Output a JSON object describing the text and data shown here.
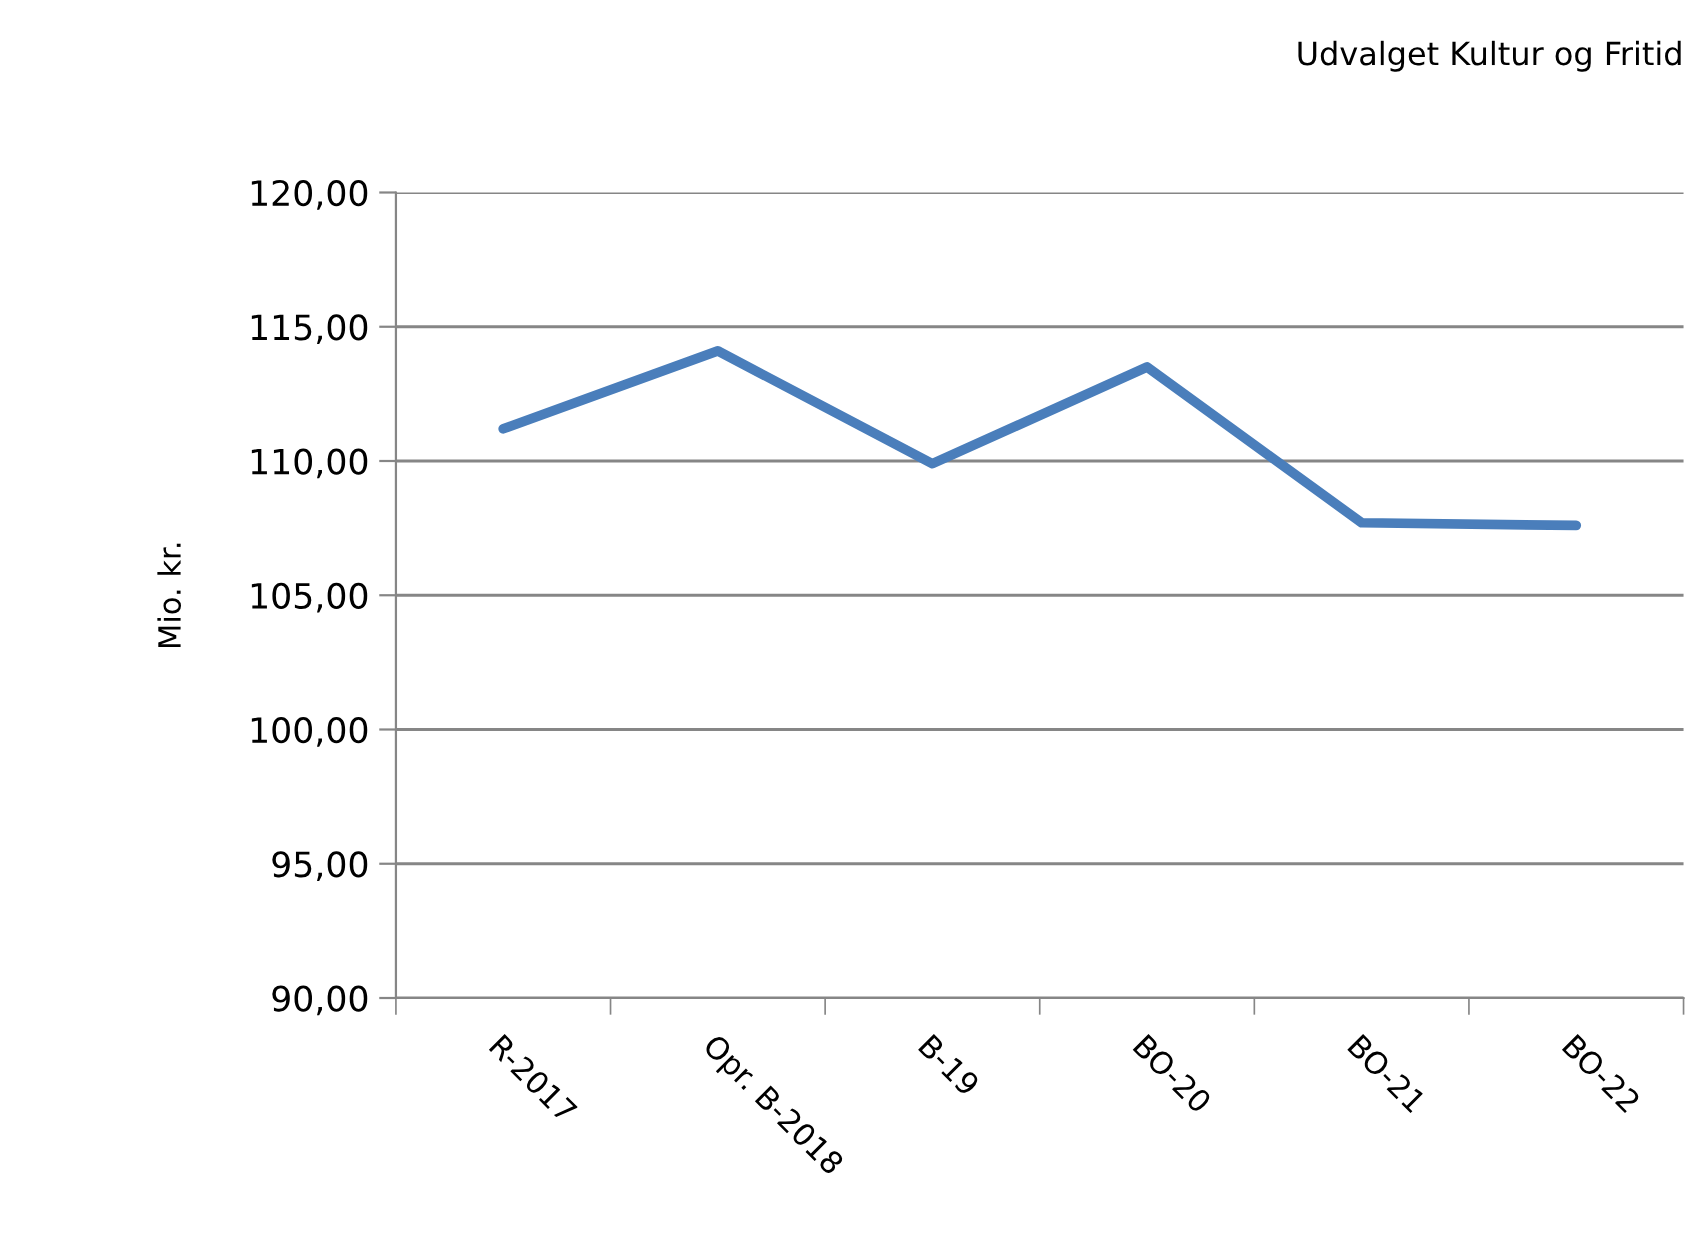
{
  "chart_data": {
    "type": "line",
    "title": "Udvalget Kultur og Fritid",
    "ylabel": "Mio. kr.",
    "categories": [
      "R-2017",
      "Opr. B-2018",
      "B-19",
      "BO-20",
      "BO-21",
      "BO-22"
    ],
    "series": [
      {
        "color": "#4a7ebb",
        "values": [
          111.2,
          114.1,
          109.9,
          113.5,
          107.7,
          107.6
        ]
      }
    ],
    "ylim": [
      90,
      120
    ],
    "yticks": [
      {
        "value": 90,
        "label": "90,00"
      },
      {
        "value": 95,
        "label": "95,00"
      },
      {
        "value": 100,
        "label": "100,00"
      },
      {
        "value": 105,
        "label": "105,00"
      },
      {
        "value": 110,
        "label": "110,00"
      },
      {
        "value": 115,
        "label": "115,00"
      },
      {
        "value": 120,
        "label": "120,00"
      }
    ],
    "grid": "y",
    "marker": "none",
    "line_style": "solid",
    "legend": false
  }
}
